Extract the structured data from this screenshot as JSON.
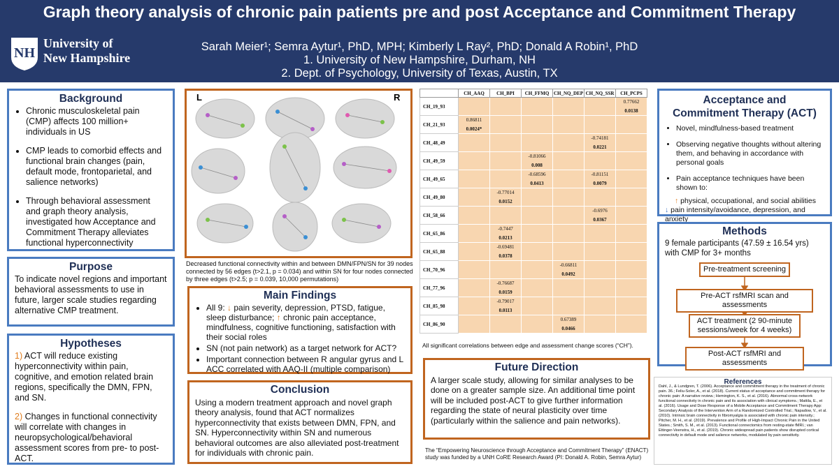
{
  "header": {
    "title": "Graph theory analysis of chronic pain patients pre and post Acceptance and Commitment Therapy",
    "logo": [
      "University of",
      "New Hampshire"
    ],
    "authors": "Sarah Meier¹; Semra Aytur¹, PhD, MPH; Kimberly L Ray², PhD; Donald A Robin¹, PhD",
    "affiliations": [
      "1. University of New Hampshire, Durham, NH",
      "2. Dept. of Psychology, University of Texas, Austin, TX"
    ]
  },
  "background": {
    "heading": "Background",
    "items": [
      "Chronic musculoskeletal pain (CMP) affects 100 million+ individuals in US",
      "CMP leads to comorbid effects and functional brain changes (pain, default mode, frontoparietal, and salience networks)",
      "Through behavioral assessment and graph theory analysis, investigated how Acceptance and Commitment Therapy alleviates functional hyperconnectivity"
    ]
  },
  "purpose": {
    "heading": "Purpose",
    "text": "To indicate novel regions and important behavioral assessments to use in future, larger scale studies regarding alternative CMP treatment."
  },
  "hypotheses": {
    "heading": "Hypotheses",
    "items": [
      {
        "number": "1)",
        "text": "ACT will reduce existing hyperconnectivity within pain, cognitive, and emotion related brain regions, specifically the DMN, FPN, and SN."
      },
      {
        "number": "2)",
        "text": "Changes in functional connectivity will correlate with changes in neuropsychological/behavioral assessment scores from pre- to post-ACT."
      }
    ]
  },
  "figure": {
    "labels": [
      "L",
      "R"
    ],
    "caption": "Decreased functional connectivity within and between DMN/FPN/SN for 39 nodes connected by 56 edges (t>2.1, p = 0.034) and within SN for four nodes connected by three edges (t>2.5; p = 0.039, 10,000 permutations)"
  },
  "main_findings": {
    "heading": "Main Findings",
    "items": [
      [
        "All 9: ",
        "↓",
        " pain severity, depression, PTSD, fatigue, sleep disturbance; ",
        "↑",
        " chronic pain acceptance, mindfulness, cognitive functioning, satisfaction with their social roles"
      ],
      [
        "SN (not pain network) as a target network for ACT?"
      ],
      [
        "Important connection between R angular gyrus and L ACC correlated with AAQ-II (multiple comparison)"
      ]
    ]
  },
  "conclusion": {
    "heading": "Conclusion",
    "text": "Using a modern treatment approach and novel graph theory analysis, found that ACT normalizes hyperconnectivity that exists between DMN, FPN, and SN. Hyperconnectivity within SN and numerous behavioral outcomes are also alleviated post-treatment for individuals with chronic pain."
  },
  "table": {
    "columns": [
      "CH_AAQ",
      "CH_BPI",
      "CH_FFMQ",
      "CH_NQ_DEP",
      "CH_NQ_SSR",
      "CH_PCPS"
    ],
    "rows": [
      {
        "label": "CH_19_93",
        "cells": [
          null,
          null,
          null,
          null,
          null,
          {
            "r": "0.77662",
            "p": "0.0138"
          }
        ]
      },
      {
        "label": "CH_21_93",
        "cells": [
          {
            "r": "0.86811",
            "p": "0.0024*"
          },
          null,
          null,
          null,
          null,
          null
        ]
      },
      {
        "label": "CH_48_49",
        "cells": [
          null,
          null,
          null,
          null,
          {
            "r": "-0.74181",
            "p": "0.0221"
          },
          null
        ]
      },
      {
        "label": "CH_49_59",
        "cells": [
          null,
          null,
          {
            "r": "-0.81066",
            "p": "0.008"
          },
          null,
          null,
          null
        ]
      },
      {
        "label": "CH_49_65",
        "cells": [
          null,
          null,
          {
            "r": "-0.68596",
            "p": "0.0413"
          },
          null,
          {
            "r": "-0.81151",
            "p": "0.0079"
          },
          null
        ]
      },
      {
        "label": "CH_49_80",
        "cells": [
          null,
          {
            "r": "-0.77014",
            "p": "0.0152"
          },
          null,
          null,
          null,
          null
        ]
      },
      {
        "label": "CH_58_66",
        "cells": [
          null,
          null,
          null,
          null,
          {
            "r": "-0.6976",
            "p": "0.0367"
          },
          null
        ]
      },
      {
        "label": "CH_65_86",
        "cells": [
          null,
          {
            "r": "-0.7447",
            "p": "0.0213"
          },
          null,
          null,
          null,
          null
        ]
      },
      {
        "label": "CH_65_88",
        "cells": [
          null,
          {
            "r": "-0.69481",
            "p": "0.0378"
          },
          null,
          null,
          null,
          null
        ]
      },
      {
        "label": "CH_70_96",
        "cells": [
          null,
          null,
          null,
          {
            "r": "-0.66811",
            "p": "0.0492"
          },
          null,
          null
        ]
      },
      {
        "label": "CH_77_96",
        "cells": [
          null,
          {
            "r": "-0.76687",
            "p": "0.0159"
          },
          null,
          null,
          null,
          null
        ]
      },
      {
        "label": "CH_85_98",
        "cells": [
          null,
          {
            "r": "-0.79017",
            "p": "0.0113"
          },
          null,
          null,
          null,
          null
        ]
      },
      {
        "label": "CH_86_90",
        "cells": [
          null,
          null,
          null,
          {
            "r": "0.67389",
            "p": "0.0466"
          },
          null,
          null
        ]
      }
    ],
    "caption": "All significant correlations between edge and assessment change scores (“CH”)."
  },
  "future_direction": {
    "heading": "Future Direction",
    "text": "A larger scale study, allowing for similar analyses to be done on a greater sample size. An additional time point will be included post-ACT to give further information regarding the state of neural plasticity over time (particularly within the salience and pain networks)."
  },
  "funding": "The “Empowering Neuroscience through Acceptance and Commitment Therapy” (ENACT) study was funded by a UNH CoRE Research Award (PI: Donald A. Robin, Semra Aytur)",
  "act": {
    "heading": "Acceptance and Commitment Therapy (ACT)",
    "items": [
      "Novel, mindfulness-based treatment",
      "Observing negative thoughts without altering them, and behaving in accordance with personal goals",
      "Pain acceptance techniques have been shown to:"
    ],
    "effects": [
      [
        "↑",
        " physical, occupational, and social abilities"
      ],
      [
        "↓",
        " pain intensity/avoidance, depression, and anxiety"
      ]
    ]
  },
  "methods": {
    "heading": "Methods",
    "text": "9 female participants (47.59 ± 16.54 yrs) with CMP for 3+ months",
    "steps": [
      "Pre-treatment screening",
      "Pre-ACT rsfMRI scan and assessments",
      "ACT treatment (2 90-minute sessions/week for 4 weeks)",
      "Post-ACT rsfMRI and assessments"
    ]
  },
  "references": {
    "heading": "References",
    "text": "Dahl, J., & Lundgren, T. (2006). Acceptance and commitment therapy in the treatment of chronic pain. 36.; Feliu-Soler, A., et al. (2018). Current status of acceptance and commitment therapy for chronic pain: A narrative review.; Hemington, K. S., et al. (2016). Abnormal cross-network functional connectivity in chronic pain and its association with clinical symptoms.; Mattila, E., et al. (2016). Usage and Dose Response of a Mobile Acceptance and Commitment Therapy App: Secondary Analysis of the Intervention Arm of a Randomized Controlled Trial.; Napadow, V., et al. (2010). Intrinsic brain connectivity in fibromyalgia is associated with chronic pain intensity.; Pitcher, M. H., et al. (2019). Prevalence and Profile of High-Impact Chronic Pain in the United States.; Smith, S. M., et al. (2013). Functional connectomics from resting-state fMRI.; van Ettinger-Veenstra, H., et al. (2019). Chronic widespread pain patients show disrupted cortical connectivity in default mode and salience networks, modulated by pain sensitivity."
  }
}
